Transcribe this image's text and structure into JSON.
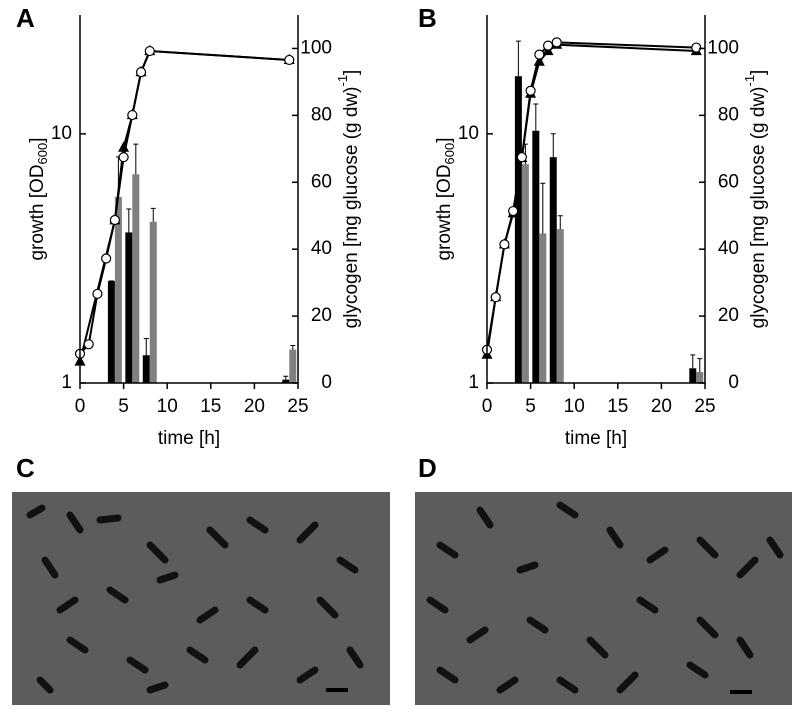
{
  "panels": [
    "A",
    "B",
    "C",
    "D"
  ],
  "chart_data": [
    {
      "type": "combo",
      "log_y": true,
      "xlabel": "time [h]",
      "ylabel": {
        "text": "growth [OD",
        "sub": "600",
        "end": "]"
      },
      "y2label": {
        "text": "glycogen [mg glucose (g dw)",
        "sup": "-1",
        "end": "]"
      },
      "xlim": [
        0,
        25
      ],
      "xticks": [
        0,
        5,
        10,
        15,
        20,
        25
      ],
      "ylim": [
        1,
        30
      ],
      "yticks": [
        1,
        10
      ],
      "y2lim": [
        0,
        110
      ],
      "y2ticks": [
        0,
        20,
        40,
        60,
        80,
        100
      ],
      "series": [
        {
          "kind": "line",
          "marker": "triangle",
          "color": "#000000",
          "x": [
            0,
            4,
            5,
            6,
            7,
            8,
            24
          ],
          "values": [
            1.22,
            4.5,
            8.8,
            11.9,
            17.7,
            21.5,
            19.8
          ]
        },
        {
          "kind": "line",
          "marker": "circle",
          "color": "#ffffff",
          "x": [
            0,
            1,
            2,
            3,
            4,
            5,
            6,
            7,
            8,
            24
          ],
          "values": [
            1.31,
            1.43,
            2.28,
            3.16,
            4.51,
            8.06,
            11.9,
            17.7,
            21.5,
            19.8
          ]
        },
        {
          "kind": "bar",
          "axis": "y2",
          "color": "#000000",
          "x": [
            4,
            6,
            8,
            24
          ],
          "values": [
            30.5,
            45,
            8.3,
            1
          ],
          "errors": [
            0,
            7,
            5,
            1
          ]
        },
        {
          "kind": "bar",
          "axis": "y2",
          "color": "#808080",
          "x": [
            4,
            6,
            8,
            24
          ],
          "values": [
            55.6,
            62.4,
            48.2,
            10
          ],
          "errors": [
            12,
            9,
            4,
            1.2
          ]
        }
      ]
    },
    {
      "type": "combo",
      "log_y": true,
      "xlabel": "time [h]",
      "ylabel": {
        "text": "growth [OD",
        "sub": "600",
        "end": "]"
      },
      "y2label": {
        "text": "glycogen [mg glucose (g dw)",
        "sup": "-1",
        "end": "]"
      },
      "xlim": [
        0,
        25
      ],
      "xticks": [
        0,
        5,
        10,
        15,
        20,
        25
      ],
      "ylim": [
        1,
        30
      ],
      "yticks": [
        1,
        10
      ],
      "y2lim": [
        0,
        110
      ],
      "y2ticks": [
        0,
        20,
        40,
        60,
        80,
        100
      ],
      "series": [
        {
          "kind": "line",
          "marker": "triangle",
          "color": "#000000",
          "x": [
            0,
            1,
            2,
            3,
            4,
            5,
            6,
            7,
            8,
            24
          ],
          "values": [
            1.3,
            2.21,
            3.6,
            4.8,
            8.0,
            14.5,
            19.5,
            21.5,
            22.8,
            21.5
          ]
        },
        {
          "kind": "line",
          "marker": "circle",
          "color": "#ffffff",
          "x": [
            0,
            1,
            2,
            3,
            4,
            5,
            6,
            7,
            8,
            24
          ],
          "values": [
            1.36,
            2.21,
            3.6,
            4.9,
            8.06,
            14.9,
            20.8,
            22.6,
            23.3,
            22.2
          ]
        },
        {
          "kind": "bar",
          "axis": "y2",
          "color": "#000000",
          "x": [
            4,
            6,
            8,
            24
          ],
          "values": [
            91.7,
            75.4,
            67.5,
            4.4
          ],
          "errors": [
            10.5,
            8,
            7,
            4
          ]
        },
        {
          "kind": "bar",
          "axis": "y2",
          "color": "#808080",
          "x": [
            4,
            6,
            8,
            24
          ],
          "values": [
            65.4,
            44.7,
            46,
            3.3
          ],
          "errors": [
            6,
            15,
            4,
            4
          ]
        }
      ]
    }
  ]
}
